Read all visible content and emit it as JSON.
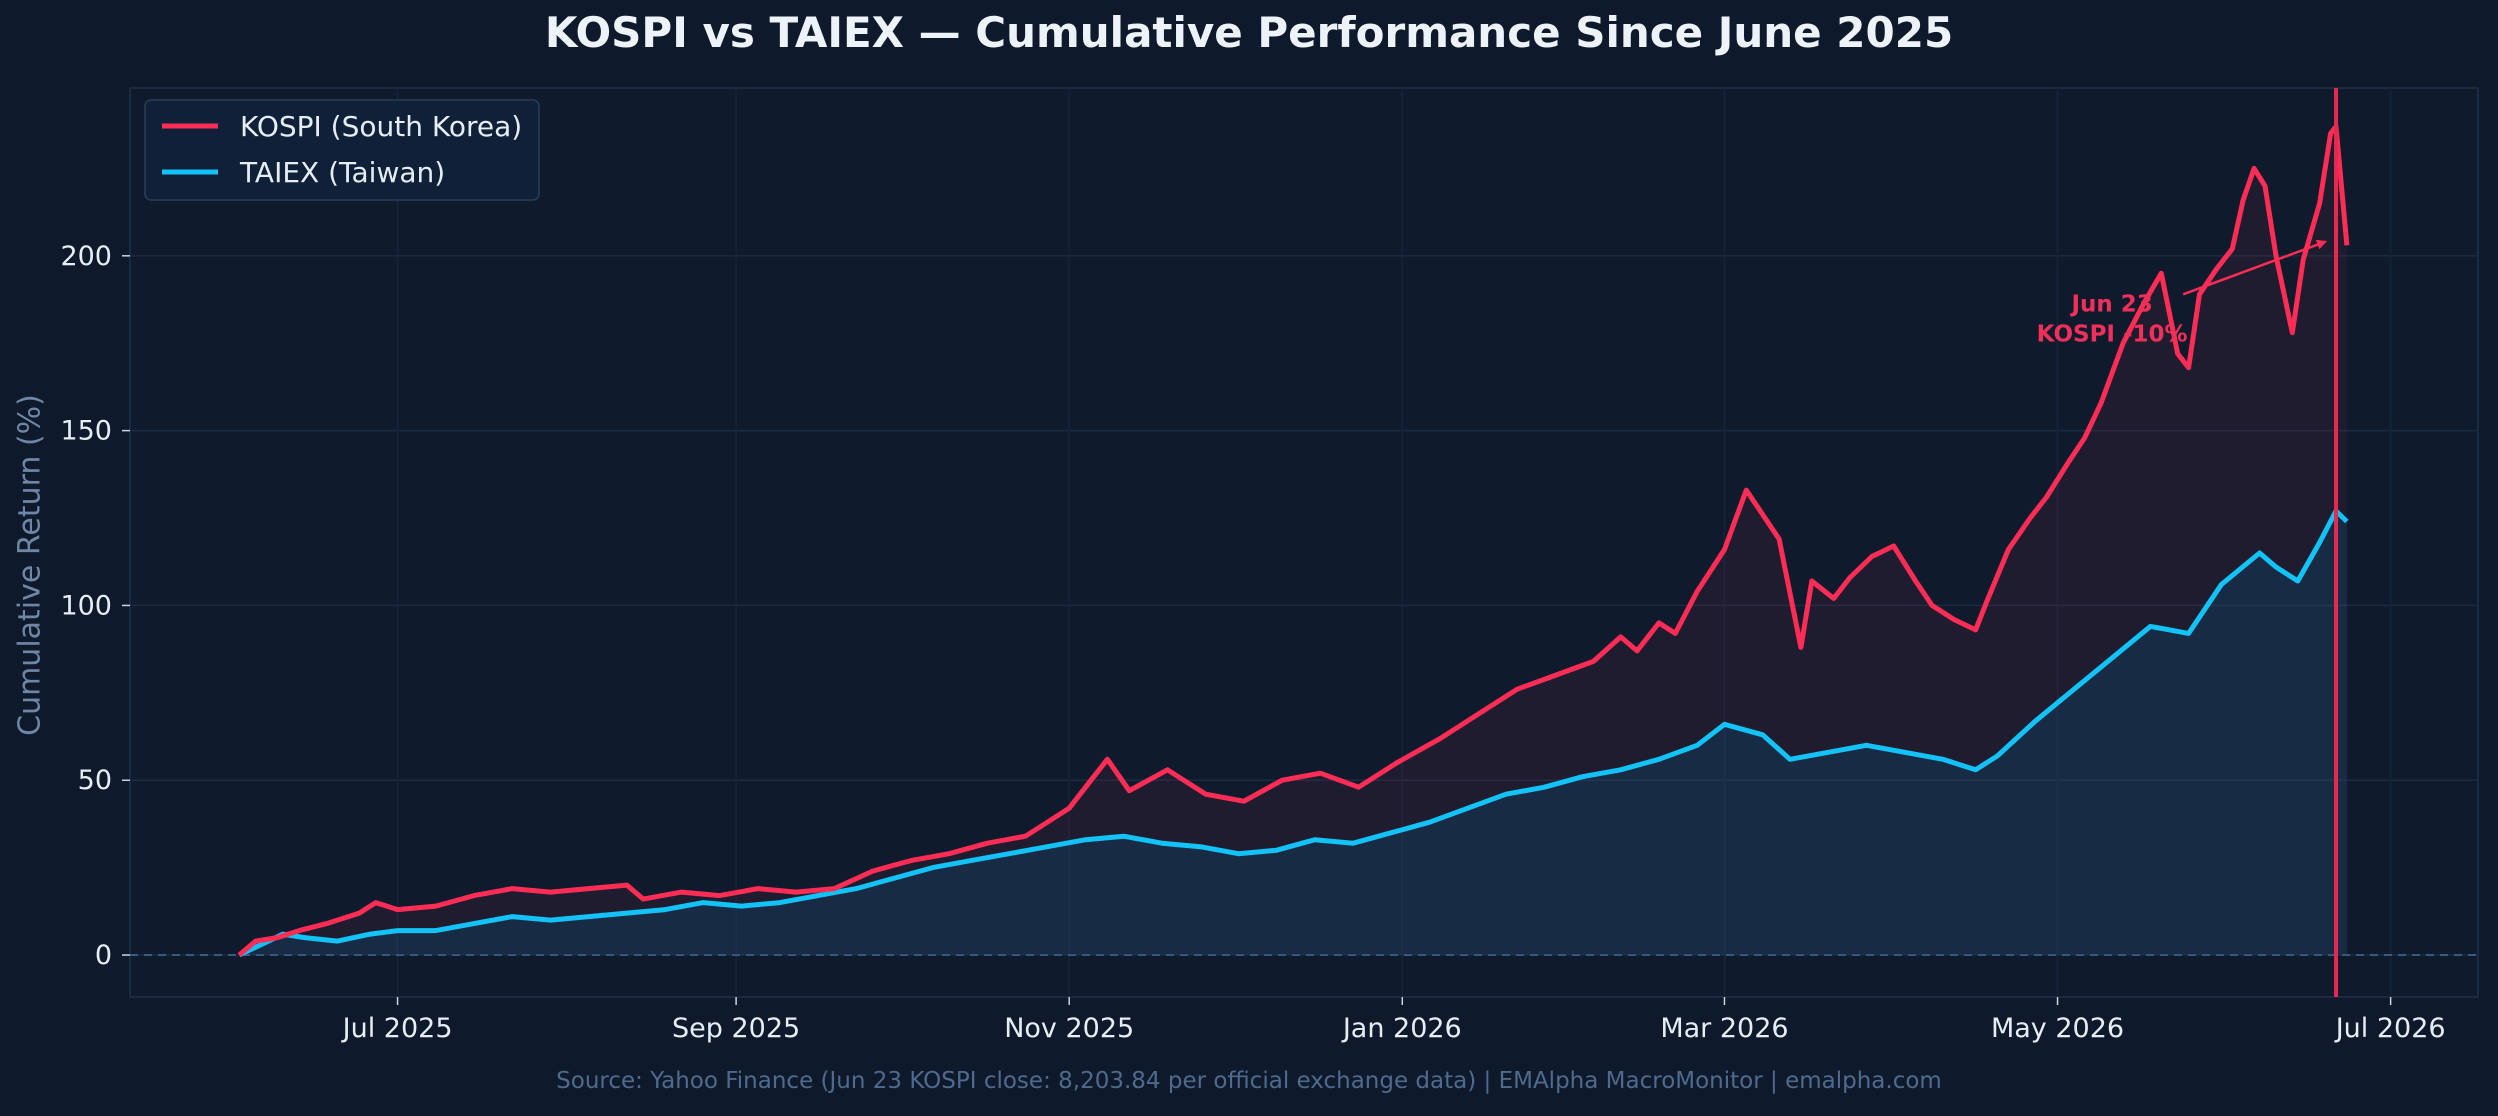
{
  "chart_data": {
    "type": "line",
    "title": "KOSPI vs TAIEX — Cumulative Performance Since June 2025",
    "xlabel": "",
    "ylabel": "Cumulative Return (%)",
    "x_tick_labels": [
      "Jul 2025",
      "Sep 2025",
      "Nov 2025",
      "Jan 2026",
      "Mar 2026",
      "May 2026",
      "Jul 2026"
    ],
    "x_tick_dates": [
      "2025-07-01",
      "2025-09-01",
      "2025-11-01",
      "2026-01-01",
      "2026-03-01",
      "2026-05-01",
      "2026-07-01"
    ],
    "y_ticks": [
      0,
      50,
      100,
      150,
      200
    ],
    "xlim": [
      "2025-05-13",
      "2026-07-17"
    ],
    "ylim": [
      -12,
      248
    ],
    "grid": true,
    "legend_position": "top-left",
    "source": "Source: Yahoo Finance (Jun 23 KOSPI close: 8,203.84 per official exchange data)  |  EMAlpha MacroMonitor  |  emalpha.com",
    "annotation": {
      "text_line1": "Jun 23",
      "text_line2": "KOSPI -10%",
      "label_at": [
        "2026-05-11",
        180
      ],
      "arrow_from": [
        "2026-05-24",
        189
      ],
      "arrow_to": [
        "2026-06-19",
        204
      ],
      "vline_date": "2026-06-21"
    },
    "colors": {
      "kospi": "#ff2d55",
      "taiex": "#13c2f7",
      "background": "#0e1a2b",
      "plot_background": "#0f1b2d",
      "vline": "#e8284f"
    },
    "series": [
      {
        "name": "KOSPI (South Korea)",
        "points": [
          [
            "2025-06-02",
            0
          ],
          [
            "2025-06-05",
            4
          ],
          [
            "2025-06-09",
            5
          ],
          [
            "2025-06-13",
            7
          ],
          [
            "2025-06-18",
            9
          ],
          [
            "2025-06-24",
            12
          ],
          [
            "2025-06-27",
            15
          ],
          [
            "2025-07-01",
            13
          ],
          [
            "2025-07-08",
            14
          ],
          [
            "2025-07-15",
            17
          ],
          [
            "2025-07-22",
            19
          ],
          [
            "2025-07-29",
            18
          ],
          [
            "2025-08-05",
            19
          ],
          [
            "2025-08-12",
            20
          ],
          [
            "2025-08-15",
            16
          ],
          [
            "2025-08-22",
            18
          ],
          [
            "2025-08-29",
            17
          ],
          [
            "2025-09-05",
            19
          ],
          [
            "2025-09-12",
            18
          ],
          [
            "2025-09-19",
            19
          ],
          [
            "2025-09-26",
            24
          ],
          [
            "2025-10-03",
            27
          ],
          [
            "2025-10-10",
            29
          ],
          [
            "2025-10-17",
            32
          ],
          [
            "2025-10-24",
            34
          ],
          [
            "2025-10-28",
            38
          ],
          [
            "2025-11-01",
            42
          ],
          [
            "2025-11-05",
            50
          ],
          [
            "2025-11-08",
            56
          ],
          [
            "2025-11-12",
            47
          ],
          [
            "2025-11-19",
            53
          ],
          [
            "2025-11-26",
            46
          ],
          [
            "2025-12-03",
            44
          ],
          [
            "2025-12-10",
            50
          ],
          [
            "2025-12-17",
            52
          ],
          [
            "2025-12-24",
            48
          ],
          [
            "2025-12-31",
            55
          ],
          [
            "2026-01-08",
            62
          ],
          [
            "2026-01-15",
            69
          ],
          [
            "2026-01-22",
            76
          ],
          [
            "2026-01-29",
            80
          ],
          [
            "2026-02-05",
            84
          ],
          [
            "2026-02-10",
            91
          ],
          [
            "2026-02-13",
            87
          ],
          [
            "2026-02-17",
            95
          ],
          [
            "2026-02-20",
            92
          ],
          [
            "2026-02-24",
            104
          ],
          [
            "2026-03-01",
            116
          ],
          [
            "2026-03-05",
            133
          ],
          [
            "2026-03-11",
            119
          ],
          [
            "2026-03-15",
            88
          ],
          [
            "2026-03-17",
            107
          ],
          [
            "2026-03-21",
            102
          ],
          [
            "2026-03-24",
            108
          ],
          [
            "2026-03-28",
            114
          ],
          [
            "2026-04-01",
            117
          ],
          [
            "2026-04-05",
            107
          ],
          [
            "2026-04-08",
            100
          ],
          [
            "2026-04-12",
            96
          ],
          [
            "2026-04-16",
            93
          ],
          [
            "2026-04-18",
            101
          ],
          [
            "2026-04-22",
            116
          ],
          [
            "2026-04-26",
            125
          ],
          [
            "2026-04-29",
            131
          ],
          [
            "2026-05-03",
            141
          ],
          [
            "2026-05-06",
            148
          ],
          [
            "2026-05-09",
            158
          ],
          [
            "2026-05-13",
            175
          ],
          [
            "2026-05-15",
            181
          ],
          [
            "2026-05-17",
            187
          ],
          [
            "2026-05-20",
            195
          ],
          [
            "2026-05-23",
            172
          ],
          [
            "2026-05-25",
            168
          ],
          [
            "2026-05-27",
            189
          ],
          [
            "2026-05-30",
            196
          ],
          [
            "2026-06-02",
            202
          ],
          [
            "2026-06-04",
            216
          ],
          [
            "2026-06-06",
            225
          ],
          [
            "2026-06-08",
            220
          ],
          [
            "2026-06-10",
            200
          ],
          [
            "2026-06-13",
            178
          ],
          [
            "2026-06-15",
            199
          ],
          [
            "2026-06-18",
            215
          ],
          [
            "2026-06-20",
            235
          ],
          [
            "2026-06-21",
            237
          ],
          [
            "2026-06-23",
            203
          ]
        ]
      },
      {
        "name": "TAIEX (Taiwan)",
        "points": [
          [
            "2025-06-02",
            0
          ],
          [
            "2025-06-06",
            3
          ],
          [
            "2025-06-10",
            6
          ],
          [
            "2025-06-14",
            5
          ],
          [
            "2025-06-20",
            4
          ],
          [
            "2025-06-26",
            6
          ],
          [
            "2025-07-01",
            7
          ],
          [
            "2025-07-08",
            7
          ],
          [
            "2025-07-15",
            9
          ],
          [
            "2025-07-22",
            11
          ],
          [
            "2025-07-29",
            10
          ],
          [
            "2025-08-05",
            11
          ],
          [
            "2025-08-12",
            12
          ],
          [
            "2025-08-19",
            13
          ],
          [
            "2025-08-26",
            15
          ],
          [
            "2025-09-02",
            14
          ],
          [
            "2025-09-09",
            15
          ],
          [
            "2025-09-16",
            17
          ],
          [
            "2025-09-23",
            19
          ],
          [
            "2025-09-30",
            22
          ],
          [
            "2025-10-07",
            25
          ],
          [
            "2025-10-14",
            27
          ],
          [
            "2025-10-21",
            29
          ],
          [
            "2025-10-28",
            31
          ],
          [
            "2025-11-04",
            33
          ],
          [
            "2025-11-11",
            34
          ],
          [
            "2025-11-18",
            32
          ],
          [
            "2025-11-25",
            31
          ],
          [
            "2025-12-02",
            29
          ],
          [
            "2025-12-09",
            30
          ],
          [
            "2025-12-16",
            33
          ],
          [
            "2025-12-23",
            32
          ],
          [
            "2025-12-30",
            35
          ],
          [
            "2026-01-06",
            38
          ],
          [
            "2026-01-13",
            42
          ],
          [
            "2026-01-20",
            46
          ],
          [
            "2026-01-27",
            48
          ],
          [
            "2026-02-03",
            51
          ],
          [
            "2026-02-10",
            53
          ],
          [
            "2026-02-17",
            56
          ],
          [
            "2026-02-24",
            60
          ],
          [
            "2026-03-01",
            66
          ],
          [
            "2026-03-08",
            63
          ],
          [
            "2026-03-13",
            56
          ],
          [
            "2026-03-20",
            58
          ],
          [
            "2026-03-27",
            60
          ],
          [
            "2026-04-03",
            58
          ],
          [
            "2026-04-10",
            56
          ],
          [
            "2026-04-16",
            53
          ],
          [
            "2026-04-20",
            57
          ],
          [
            "2026-04-27",
            67
          ],
          [
            "2026-05-04",
            76
          ],
          [
            "2026-05-11",
            85
          ],
          [
            "2026-05-18",
            94
          ],
          [
            "2026-05-25",
            92
          ],
          [
            "2026-05-31",
            106
          ],
          [
            "2026-06-07",
            115
          ],
          [
            "2026-06-10",
            111
          ],
          [
            "2026-06-14",
            107
          ],
          [
            "2026-06-18",
            118
          ],
          [
            "2026-06-21",
            127
          ],
          [
            "2026-06-23",
            124
          ]
        ]
      }
    ]
  }
}
